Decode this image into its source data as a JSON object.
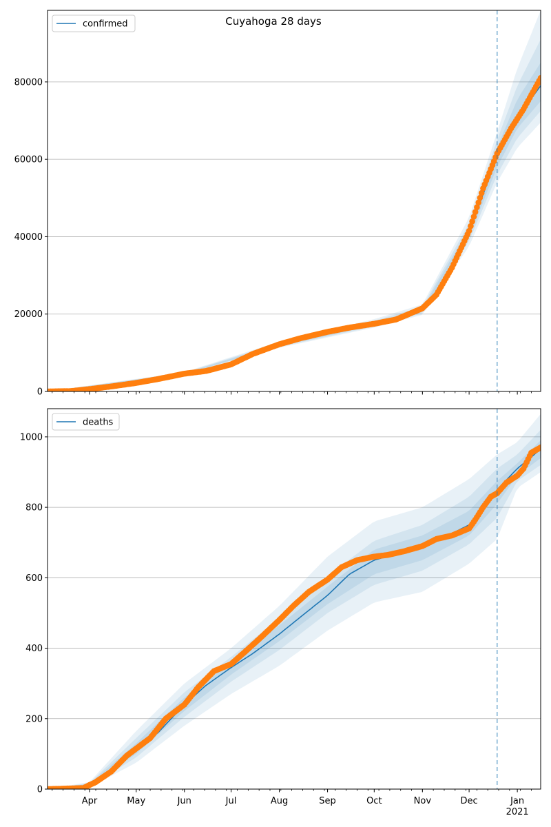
{
  "title": "Cuyahoga 28 days",
  "colors": {
    "fit_line": "#1f77b4",
    "band": "#1f77b4",
    "observed": "#ff7f0e",
    "forecast_divider": "#1f77b4",
    "grid": "#b0b0b0"
  },
  "x_axis": {
    "tick_labels": [
      "Apr",
      "May",
      "Jun",
      "Jul",
      "Aug",
      "Sep",
      "Oct",
      "Nov",
      "Dec",
      "Jan"
    ],
    "year_label": "2021"
  },
  "chart_data": [
    {
      "type": "line",
      "legend": "confirmed",
      "legend_position": "top-left",
      "grid": "y",
      "x_range": [
        "2020-03-05",
        "2021-01-16"
      ],
      "forecast_start": "2020-12-19",
      "ylim": [
        0,
        98500
      ],
      "yticks": [
        0,
        20000,
        40000,
        60000,
        80000
      ],
      "fit_curve": {
        "x": [
          "2020-03-05",
          "2020-04-01",
          "2020-05-01",
          "2020-06-01",
          "2020-06-20",
          "2020-07-01",
          "2020-07-15",
          "2020-08-01",
          "2020-08-15",
          "2020-09-01",
          "2020-09-15",
          "2020-10-01",
          "2020-10-15",
          "2020-11-01",
          "2020-11-10",
          "2020-11-20",
          "2020-12-01",
          "2020-12-10",
          "2020-12-19",
          "2020-12-28",
          "2021-01-05",
          "2021-01-16"
        ],
        "y": [
          0,
          600,
          2200,
          4600,
          5800,
          7100,
          9700,
          12000,
          13700,
          15200,
          16400,
          17500,
          18500,
          21000,
          24500,
          31500,
          41000,
          51000,
          60500,
          68000,
          73000,
          79000
        ]
      },
      "bands": [
        {
          "x": [
            "2020-03-05",
            "2020-06-01",
            "2020-08-01",
            "2020-10-01",
            "2020-11-01",
            "2020-12-01",
            "2020-12-19",
            "2021-01-01",
            "2021-01-16"
          ],
          "lower": [
            0,
            4300,
            11300,
            16500,
            19800,
            37500,
            54000,
            63000,
            69500
          ],
          "upper": [
            0,
            5000,
            12900,
            18700,
            22500,
            45000,
            67000,
            83500,
            98500
          ]
        },
        {
          "x": [
            "2020-03-05",
            "2020-06-01",
            "2020-08-01",
            "2020-10-01",
            "2020-11-01",
            "2020-12-01",
            "2020-12-19",
            "2021-01-01",
            "2021-01-16"
          ],
          "lower": [
            0,
            4400,
            11500,
            16800,
            20200,
            38800,
            56000,
            65500,
            72500
          ],
          "upper": [
            0,
            4850,
            12600,
            18300,
            21900,
            43500,
            65000,
            79000,
            91000
          ]
        },
        {
          "x": [
            "2020-03-05",
            "2020-06-01",
            "2020-08-01",
            "2020-10-01",
            "2020-11-01",
            "2020-12-01",
            "2020-12-19",
            "2021-01-01",
            "2021-01-16"
          ],
          "lower": [
            0,
            4500,
            11700,
            17100,
            20600,
            39800,
            58000,
            68000,
            75000
          ],
          "upper": [
            0,
            4750,
            12300,
            17900,
            21400,
            42300,
            63000,
            75500,
            85000
          ]
        }
      ],
      "observed": {
        "x": [
          "2020-03-05",
          "2020-03-20",
          "2020-04-01",
          "2020-04-15",
          "2020-05-01",
          "2020-05-15",
          "2020-06-01",
          "2020-06-15",
          "2020-07-01",
          "2020-07-15",
          "2020-08-01",
          "2020-08-15",
          "2020-09-01",
          "2020-09-15",
          "2020-10-01",
          "2020-10-15",
          "2020-11-01",
          "2020-11-10",
          "2020-11-20",
          "2020-12-01",
          "2020-12-10",
          "2020-12-19",
          "2020-12-28",
          "2021-01-05",
          "2021-01-16"
        ],
        "y": [
          0,
          100,
          600,
          1300,
          2200,
          3200,
          4600,
          5300,
          7000,
          9700,
          12200,
          13800,
          15400,
          16500,
          17500,
          18600,
          21500,
          25000,
          32000,
          41500,
          52500,
          61500,
          68000,
          73000,
          81000
        ]
      }
    },
    {
      "type": "line",
      "legend": "deaths",
      "legend_position": "top-left",
      "grid": "y",
      "x_range": [
        "2020-03-05",
        "2021-01-16"
      ],
      "forecast_start": "2020-12-19",
      "ylim": [
        0,
        1080
      ],
      "yticks": [
        0,
        200,
        400,
        600,
        800,
        1000
      ],
      "fit_curve": {
        "x": [
          "2020-03-05",
          "2020-03-25",
          "2020-04-01",
          "2020-04-15",
          "2020-05-01",
          "2020-05-15",
          "2020-06-01",
          "2020-06-15",
          "2020-07-01",
          "2020-07-15",
          "2020-08-01",
          "2020-08-15",
          "2020-09-01",
          "2020-09-15",
          "2020-10-01",
          "2020-10-15",
          "2020-11-01",
          "2020-11-15",
          "2020-12-01",
          "2020-12-10",
          "2020-12-19",
          "2021-01-01",
          "2021-01-16"
        ],
        "y": [
          0,
          3,
          12,
          50,
          110,
          160,
          240,
          295,
          345,
          385,
          440,
          490,
          550,
          610,
          650,
          668,
          690,
          715,
          750,
          800,
          850,
          910,
          965
        ]
      },
      "bands": [
        {
          "x": [
            "2020-03-05",
            "2020-04-01",
            "2020-05-01",
            "2020-06-01",
            "2020-07-01",
            "2020-08-01",
            "2020-09-01",
            "2020-10-01",
            "2020-11-01",
            "2020-12-01",
            "2020-12-19",
            "2021-01-01",
            "2021-01-16"
          ],
          "lower": [
            0,
            5,
            75,
            180,
            270,
            350,
            450,
            530,
            560,
            640,
            710,
            855,
            900
          ],
          "upper": [
            0,
            20,
            165,
            300,
            400,
            520,
            660,
            760,
            800,
            880,
            950,
            985,
            1065
          ]
        },
        {
          "x": [
            "2020-03-05",
            "2020-04-01",
            "2020-05-01",
            "2020-06-01",
            "2020-07-01",
            "2020-08-01",
            "2020-09-01",
            "2020-10-01",
            "2020-11-01",
            "2020-12-01",
            "2020-12-19",
            "2021-01-01",
            "2021-01-16"
          ],
          "lower": [
            0,
            7,
            90,
            205,
            305,
            395,
            500,
            580,
            620,
            695,
            770,
            875,
            920
          ],
          "upper": [
            0,
            17,
            145,
            275,
            375,
            485,
            605,
            705,
            750,
            830,
            910,
            950,
            1020
          ]
        },
        {
          "x": [
            "2020-03-05",
            "2020-04-01",
            "2020-05-01",
            "2020-06-01",
            "2020-07-01",
            "2020-08-01",
            "2020-09-01",
            "2020-10-01",
            "2020-11-01",
            "2020-12-01",
            "2020-12-19",
            "2021-01-01",
            "2021-01-16"
          ],
          "lower": [
            0,
            9,
            100,
            222,
            325,
            420,
            525,
            610,
            650,
            720,
            810,
            890,
            940
          ],
          "upper": [
            0,
            15,
            130,
            260,
            360,
            465,
            575,
            680,
            720,
            790,
            875,
            925,
            990
          ]
        }
      ],
      "observed": {
        "x": [
          "2020-03-05",
          "2020-03-28",
          "2020-04-05",
          "2020-04-15",
          "2020-04-25",
          "2020-05-01",
          "2020-05-10",
          "2020-05-20",
          "2020-06-01",
          "2020-06-10",
          "2020-06-20",
          "2020-07-01",
          "2020-07-10",
          "2020-07-20",
          "2020-08-01",
          "2020-08-10",
          "2020-08-20",
          "2020-09-01",
          "2020-09-10",
          "2020-09-20",
          "2020-10-01",
          "2020-10-10",
          "2020-10-20",
          "2020-11-01",
          "2020-11-10",
          "2020-11-20",
          "2020-12-01",
          "2020-12-05",
          "2020-12-10",
          "2020-12-15",
          "2020-12-19",
          "2020-12-25",
          "2021-01-01",
          "2021-01-05",
          "2021-01-10",
          "2021-01-16"
        ],
        "y": [
          0,
          3,
          20,
          50,
          95,
          115,
          145,
          200,
          240,
          290,
          335,
          355,
          390,
          430,
          480,
          520,
          560,
          595,
          630,
          650,
          660,
          665,
          675,
          690,
          710,
          720,
          740,
          765,
          800,
          830,
          840,
          870,
          890,
          910,
          955,
          970
        ]
      }
    }
  ]
}
